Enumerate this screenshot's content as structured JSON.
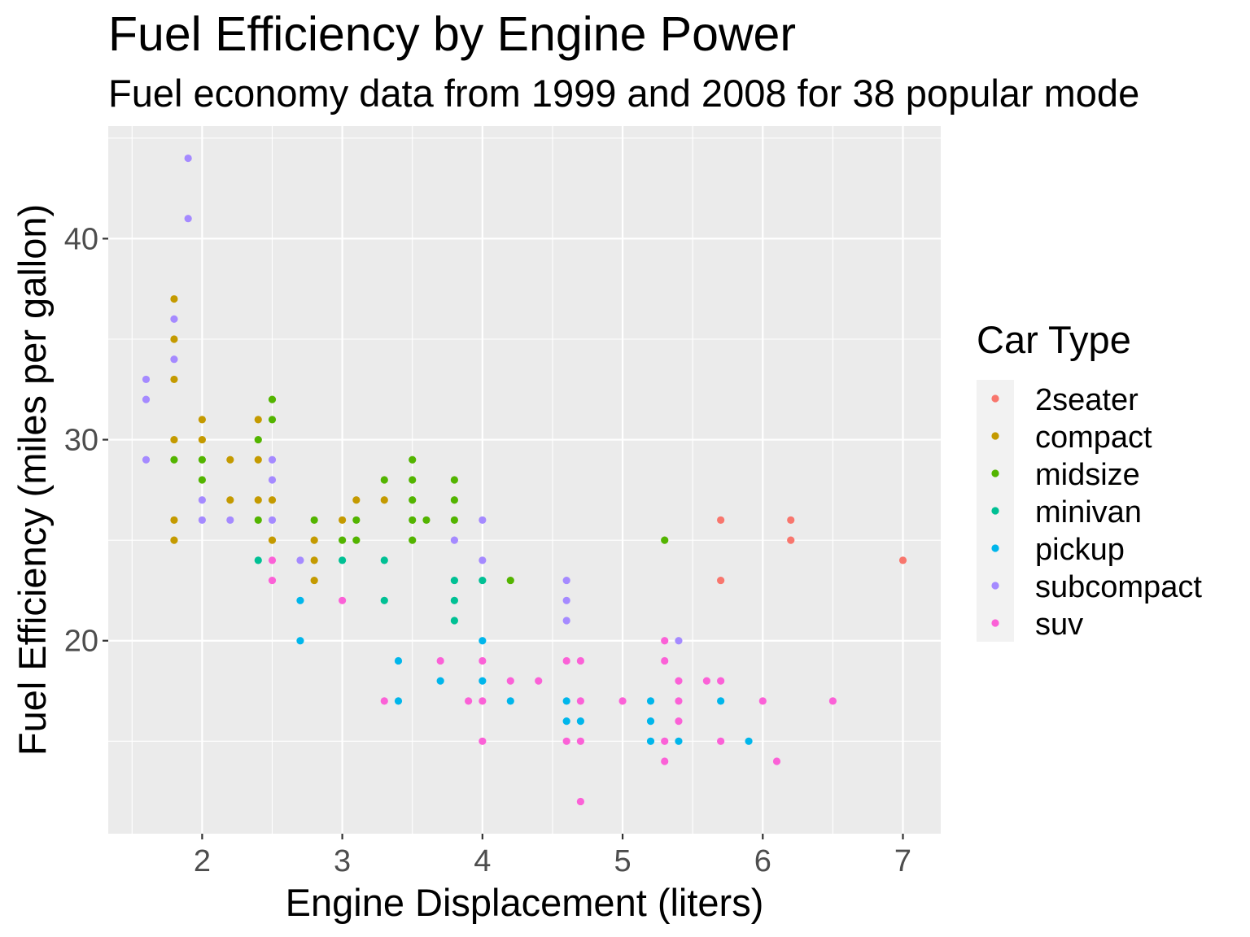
{
  "chart_data": {
    "type": "scatter",
    "title": "Fuel Efficiency by Engine Power",
    "subtitle": "Fuel economy data from 1999 and 2008 for 38 popular mode",
    "xlabel": "Engine Displacement (liters)",
    "ylabel": "Fuel Efficiency (miles per gallon)",
    "xlim": [
      1.33,
      7.27
    ],
    "ylim": [
      10.4,
      45.6
    ],
    "x_ticks": [
      2,
      3,
      4,
      5,
      6,
      7
    ],
    "y_ticks": [
      20,
      30,
      40
    ],
    "grid": true,
    "legend": {
      "title": "Car Type",
      "position": "right",
      "entries": [
        "2seater",
        "compact",
        "midsize",
        "minivan",
        "pickup",
        "subcompact",
        "suv"
      ]
    },
    "colors": {
      "2seater": "#F8766D",
      "compact": "#C49A00",
      "midsize": "#53B400",
      "minivan": "#00C094",
      "pickup": "#00B6EB",
      "subcompact": "#A58AFF",
      "suv": "#FB61D7"
    },
    "series": [
      {
        "name": "2seater",
        "points": [
          [
            5.7,
            26
          ],
          [
            5.7,
            23
          ],
          [
            6.2,
            26
          ],
          [
            6.2,
            25
          ],
          [
            7.0,
            24
          ]
        ]
      },
      {
        "name": "compact",
        "points": [
          [
            1.8,
            37
          ],
          [
            1.8,
            35
          ],
          [
            1.8,
            33
          ],
          [
            1.8,
            30
          ],
          [
            1.8,
            26
          ],
          [
            1.8,
            25
          ],
          [
            2.0,
            31
          ],
          [
            2.0,
            30
          ],
          [
            2.2,
            29
          ],
          [
            2.2,
            27
          ],
          [
            2.4,
            31
          ],
          [
            2.4,
            29
          ],
          [
            2.4,
            27
          ],
          [
            2.5,
            27
          ],
          [
            2.5,
            25
          ],
          [
            2.8,
            25
          ],
          [
            2.8,
            24
          ],
          [
            2.8,
            23
          ],
          [
            3.0,
            26
          ],
          [
            3.1,
            27
          ],
          [
            3.3,
            27
          ]
        ]
      },
      {
        "name": "midsize",
        "points": [
          [
            1.8,
            29
          ],
          [
            2.0,
            29
          ],
          [
            2.0,
            28
          ],
          [
            2.4,
            30
          ],
          [
            2.4,
            26
          ],
          [
            2.5,
            32
          ],
          [
            2.5,
            31
          ],
          [
            2.8,
            26
          ],
          [
            3.0,
            25
          ],
          [
            3.1,
            26
          ],
          [
            3.1,
            25
          ],
          [
            3.3,
            28
          ],
          [
            3.5,
            29
          ],
          [
            3.5,
            28
          ],
          [
            3.5,
            27
          ],
          [
            3.5,
            26
          ],
          [
            3.5,
            25
          ],
          [
            3.6,
            26
          ],
          [
            3.8,
            28
          ],
          [
            3.8,
            27
          ],
          [
            3.8,
            26
          ],
          [
            4.2,
            23
          ],
          [
            5.3,
            25
          ]
        ]
      },
      {
        "name": "minivan",
        "points": [
          [
            2.4,
            24
          ],
          [
            3.0,
            24
          ],
          [
            3.3,
            24
          ],
          [
            3.3,
            22
          ],
          [
            3.8,
            23
          ],
          [
            3.8,
            22
          ],
          [
            3.8,
            21
          ],
          [
            4.0,
            23
          ]
        ]
      },
      {
        "name": "pickup",
        "points": [
          [
            2.7,
            22
          ],
          [
            2.7,
            20
          ],
          [
            3.4,
            19
          ],
          [
            3.4,
            17
          ],
          [
            3.7,
            18
          ],
          [
            4.0,
            20
          ],
          [
            4.0,
            18
          ],
          [
            4.2,
            17
          ],
          [
            4.6,
            17
          ],
          [
            4.6,
            16
          ],
          [
            4.7,
            16
          ],
          [
            5.2,
            17
          ],
          [
            5.2,
            16
          ],
          [
            5.2,
            15
          ],
          [
            5.4,
            15
          ],
          [
            5.7,
            17
          ],
          [
            5.9,
            15
          ]
        ]
      },
      {
        "name": "subcompact",
        "points": [
          [
            1.6,
            33
          ],
          [
            1.6,
            32
          ],
          [
            1.6,
            29
          ],
          [
            1.8,
            36
          ],
          [
            1.8,
            34
          ],
          [
            1.9,
            44
          ],
          [
            1.9,
            41
          ],
          [
            2.0,
            27
          ],
          [
            2.0,
            26
          ],
          [
            2.2,
            26
          ],
          [
            2.5,
            29
          ],
          [
            2.5,
            28
          ],
          [
            2.5,
            26
          ],
          [
            2.7,
            24
          ],
          [
            3.8,
            25
          ],
          [
            4.0,
            26
          ],
          [
            4.0,
            24
          ],
          [
            4.6,
            23
          ],
          [
            4.6,
            22
          ],
          [
            4.6,
            21
          ],
          [
            5.4,
            20
          ]
        ]
      },
      {
        "name": "suv",
        "points": [
          [
            2.5,
            24
          ],
          [
            2.5,
            23
          ],
          [
            3.0,
            22
          ],
          [
            3.3,
            17
          ],
          [
            3.7,
            19
          ],
          [
            3.9,
            17
          ],
          [
            4.0,
            19
          ],
          [
            4.0,
            17
          ],
          [
            4.0,
            15
          ],
          [
            4.2,
            18
          ],
          [
            4.4,
            18
          ],
          [
            4.6,
            19
          ],
          [
            4.6,
            15
          ],
          [
            4.7,
            19
          ],
          [
            4.7,
            17
          ],
          [
            4.7,
            15
          ],
          [
            4.7,
            12
          ],
          [
            5.0,
            17
          ],
          [
            5.3,
            20
          ],
          [
            5.3,
            19
          ],
          [
            5.3,
            15
          ],
          [
            5.3,
            14
          ],
          [
            5.4,
            18
          ],
          [
            5.4,
            17
          ],
          [
            5.4,
            16
          ],
          [
            5.6,
            18
          ],
          [
            5.7,
            18
          ],
          [
            5.7,
            15
          ],
          [
            6.0,
            17
          ],
          [
            6.1,
            14
          ],
          [
            6.5,
            17
          ]
        ]
      }
    ]
  }
}
